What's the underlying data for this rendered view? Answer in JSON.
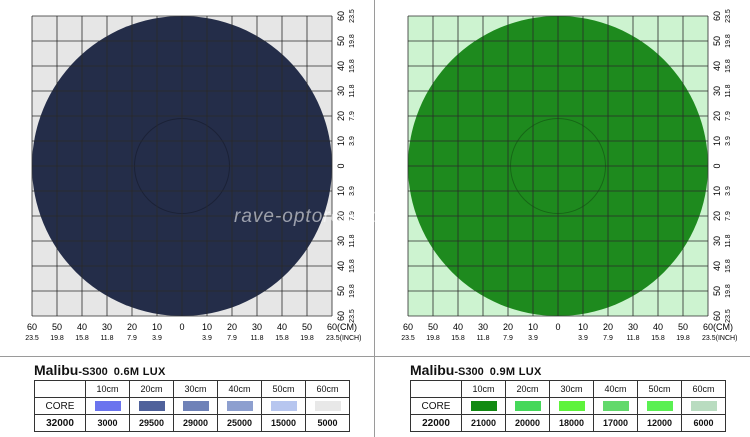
{
  "watermark": "rave-optoren.com",
  "x_ticks_cm": [
    "60",
    "50",
    "40",
    "30",
    "20",
    "10",
    "0",
    "10",
    "20",
    "30",
    "40",
    "50",
    "60(CM)"
  ],
  "x_ticks_inch": [
    "23.5",
    "19.8",
    "15.8",
    "11.8",
    "7.9",
    "3.9",
    "",
    "3.9",
    "7.9",
    "11.8",
    "15.8",
    "19.8",
    "23.5(INCH)"
  ],
  "y_ticks_cm": [
    "60",
    "50",
    "40",
    "30",
    "20",
    "10",
    "0",
    "10",
    "20",
    "30",
    "40",
    "50",
    "60"
  ],
  "y_ticks_inch": [
    "23.5",
    "19.8",
    "15.8",
    "11.8",
    "7.9",
    "3.9",
    "",
    "3.9",
    "7.9",
    "11.8",
    "15.8",
    "19.8",
    "23.5"
  ],
  "left": {
    "model": "Malibu",
    "model_suffix": "-S300",
    "distance_lux": "0.6M LUX",
    "header": [
      "",
      "10cm",
      "20cm",
      "30cm",
      "40cm",
      "50cm",
      "60cm"
    ],
    "core_label": "CORE",
    "core_value": "32000",
    "values": [
      "3000",
      "29500",
      "29000",
      "25000",
      "15000",
      "5000"
    ],
    "ring_colors": [
      "#242d49",
      "#5c6fa9",
      "#7384bf",
      "#8b9bd1",
      "#a6b3df",
      "#c3cceb"
    ],
    "swatch_colors": [
      "#6b74ee",
      "#4f619b",
      "#6f82b8",
      "#8d9fcf",
      "#b7c6ef",
      "#e8e8e8"
    ],
    "grid_bg": "#e6e6e6"
  },
  "right": {
    "model": "Malibu",
    "model_suffix": "-S300",
    "distance_lux": "0.9M LUX",
    "header": [
      "",
      "10cm",
      "20cm",
      "30cm",
      "40cm",
      "50cm",
      "60cm"
    ],
    "core_label": "CORE",
    "core_value": "22000",
    "values": [
      "21000",
      "20000",
      "18000",
      "17000",
      "12000",
      "6000"
    ],
    "ring_colors": [
      "#1e8a1e",
      "#3fd03c",
      "#4fe04a",
      "#6ded66",
      "#95f58a",
      "#b6f3ac"
    ],
    "swatch_colors": [
      "#128a12",
      "#45d85a",
      "#5ef33b",
      "#62d96b",
      "#5af052",
      "#b9dcc0"
    ],
    "grid_bg": "#cdf3d0"
  }
}
